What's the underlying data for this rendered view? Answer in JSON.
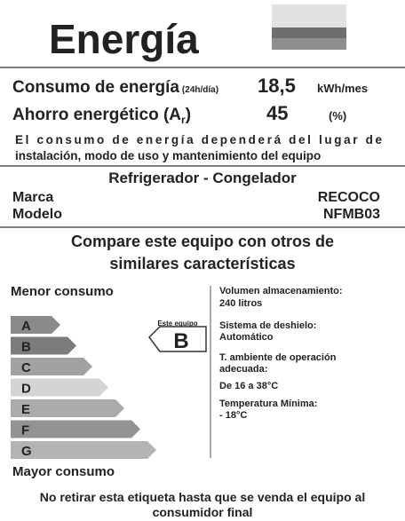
{
  "header": {
    "title": "Energía"
  },
  "consumption": {
    "label": "Consumo de energía",
    "note": "(24h/día)",
    "value": "18,5",
    "unit": "kWh/mes"
  },
  "saving": {
    "label": "Ahorro energético (A",
    "subscript": "r",
    "label_end": ")",
    "value": "45",
    "unit": "(%)"
  },
  "notice": {
    "lines": [
      "El consumo de energía dependerá del lugar de",
      "instalación, modo de uso y mantenimiento del equipo"
    ]
  },
  "product": {
    "type": "Refrigerador - Congelador",
    "brand_label": "Marca",
    "brand": "RECOCO",
    "model_label": "Modelo",
    "model": "NFMB03"
  },
  "compare": {
    "lines": [
      "Compare este equipo con otros de",
      "similares características"
    ]
  },
  "scale": {
    "top_label": "Menor consumo",
    "bottom_label": "Mayor consumo",
    "classes": [
      "A",
      "B",
      "C",
      "D",
      "E",
      "F",
      "G"
    ],
    "this_label": "Este equipo",
    "this_class": "B"
  },
  "specs": [
    "Volumen almacenamiento:",
    "240 litros",
    "Sistema de deshielo:",
    "Automático",
    "T. ambiente de operación",
    "adecuada:",
    "De 16 a 38°C",
    "Temperatura Mínima:",
    "- 18°C"
  ],
  "footer": {
    "lines": [
      "No retirar esta etiqueta hasta que se venda el equipo al",
      "consumidor final"
    ]
  }
}
